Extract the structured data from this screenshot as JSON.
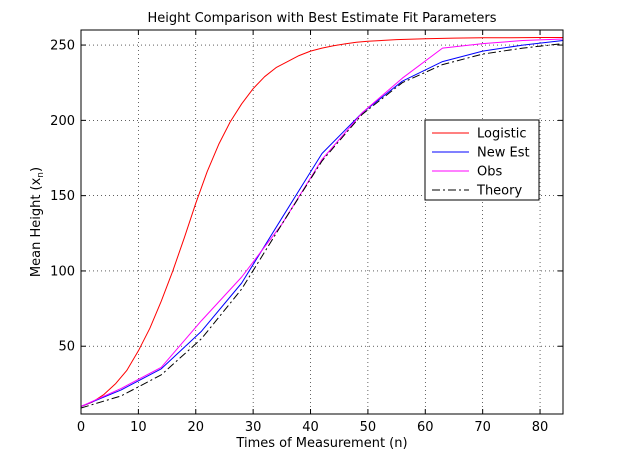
{
  "chart_data": {
    "type": "line",
    "title": "Height Comparison with Best Estimate Fit Parameters",
    "xlabel": "Times of Measurement (n)",
    "ylabel_main": "Mean Height  (x",
    "ylabel_sub": "n",
    "ylabel_close": ")",
    "xlim": [
      0,
      84
    ],
    "ylim": [
      5,
      260
    ],
    "xticks": [
      0,
      10,
      20,
      30,
      40,
      50,
      60,
      70,
      80
    ],
    "yticks": [
      50,
      100,
      150,
      200,
      250
    ],
    "grid": true,
    "legend_position": "right, upper-middle",
    "series": [
      {
        "name": "Logistic",
        "color": "#ff0000",
        "style": "solid",
        "x": [
          0,
          2,
          4,
          6,
          8,
          10,
          12,
          14,
          16,
          18,
          20,
          22,
          24,
          26,
          28,
          30,
          32,
          34,
          36,
          38,
          40,
          42,
          44,
          46,
          48,
          50,
          55,
          60,
          65,
          70,
          75,
          80,
          84
        ],
        "y": [
          10,
          13,
          18,
          25,
          34,
          47,
          62,
          80,
          100,
          122,
          145,
          166,
          184,
          199,
          211,
          221,
          229,
          235,
          239,
          243,
          246,
          248,
          249.5,
          250.8,
          251.8,
          252.5,
          253.6,
          254.2,
          254.6,
          254.8,
          254.9,
          255,
          255
        ]
      },
      {
        "name": "New Est",
        "color": "#0000ff",
        "style": "solid",
        "x": [
          0,
          7,
          14,
          21,
          28,
          35,
          42,
          49,
          56,
          63,
          70,
          77,
          84
        ],
        "y": [
          10,
          21,
          35,
          60,
          92,
          135,
          178,
          205,
          226,
          239,
          246,
          250,
          253
        ]
      },
      {
        "name": "Obs",
        "color": "#ff00ff",
        "style": "solid",
        "x": [
          0,
          7,
          14,
          21,
          28,
          35,
          42,
          49,
          56,
          63,
          70,
          77,
          84
        ],
        "y": [
          10,
          22,
          36,
          67,
          96,
          131,
          174,
          205,
          228,
          248,
          251,
          253,
          254
        ]
      },
      {
        "name": "Theory",
        "color": "#000000",
        "style": "dashdot",
        "x": [
          0,
          7,
          14,
          21,
          28,
          35,
          42,
          49,
          56,
          63,
          70,
          77,
          84
        ],
        "y": [
          9,
          17,
          31,
          55,
          88,
          131,
          173,
          204,
          225,
          237,
          244,
          248,
          251
        ]
      }
    ]
  }
}
